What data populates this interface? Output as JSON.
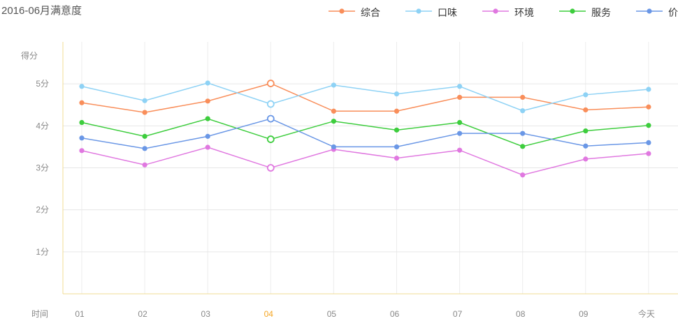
{
  "title": "2016-06月满意度",
  "chart_data": {
    "type": "line",
    "ylabel": "得分",
    "xlabel": "时间",
    "categories": [
      "01",
      "02",
      "03",
      "04",
      "05",
      "06",
      "07",
      "08",
      "09",
      "今天"
    ],
    "highlight_category": "04",
    "y_ticks": [
      {
        "value": 1,
        "label": "1分"
      },
      {
        "value": 2,
        "label": "2分"
      },
      {
        "value": 3,
        "label": "3分"
      },
      {
        "value": 4,
        "label": "4分"
      },
      {
        "value": 5,
        "label": "5分"
      }
    ],
    "ylim": [
      0,
      6
    ],
    "grid": true,
    "legend_position": "top-right",
    "series": [
      {
        "name": "综合",
        "color": "#f98e5a",
        "values": [
          4.55,
          4.32,
          4.59,
          5.01,
          4.35,
          4.35,
          4.68,
          4.68,
          4.38,
          4.45
        ]
      },
      {
        "name": "口味",
        "color": "#8ed2f5",
        "values": [
          4.94,
          4.6,
          5.02,
          4.52,
          4.97,
          4.76,
          4.94,
          4.36,
          4.74,
          4.87
        ]
      },
      {
        "name": "环境",
        "color": "#e078e0",
        "values": [
          3.41,
          3.07,
          3.49,
          3.0,
          3.44,
          3.23,
          3.42,
          2.83,
          3.21,
          3.34
        ]
      },
      {
        "name": "服务",
        "color": "#3dcd3d",
        "values": [
          4.08,
          3.75,
          4.17,
          3.68,
          4.11,
          3.9,
          4.08,
          3.51,
          3.88,
          4.01
        ]
      },
      {
        "name": "价格",
        "color": "#6a97e6",
        "values": [
          3.71,
          3.46,
          3.75,
          4.17,
          3.5,
          3.5,
          3.82,
          3.82,
          3.52,
          3.6
        ]
      }
    ]
  }
}
